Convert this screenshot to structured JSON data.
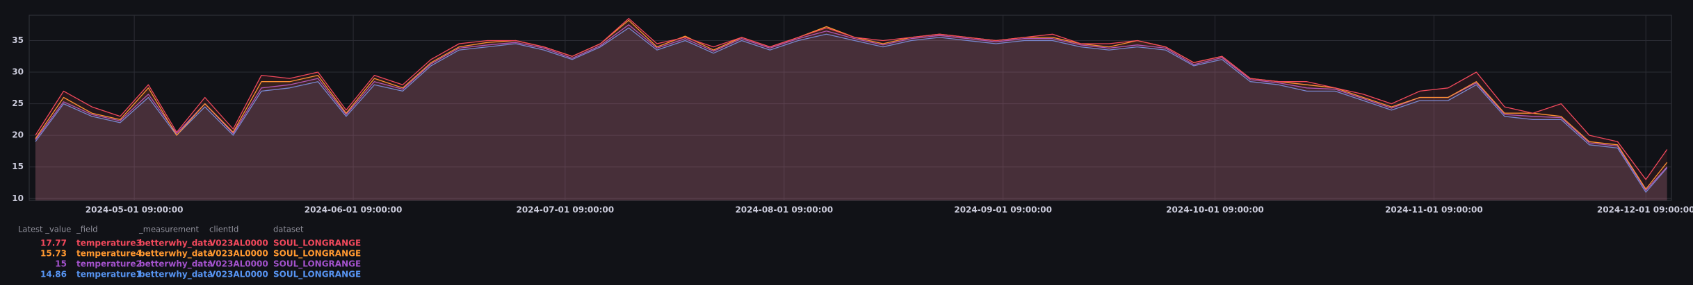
{
  "chart_data": {
    "type": "line",
    "x": [
      "2024-04-17 09:00:00",
      "2024-04-21 09:00:00",
      "2024-04-25 09:00:00",
      "2024-04-29 09:00:00",
      "2024-05-03 09:00:00",
      "2024-05-07 09:00:00",
      "2024-05-11 09:00:00",
      "2024-05-15 09:00:00",
      "2024-05-19 09:00:00",
      "2024-05-23 09:00:00",
      "2024-05-27 09:00:00",
      "2024-05-31 09:00:00",
      "2024-06-04 09:00:00",
      "2024-06-08 09:00:00",
      "2024-06-12 09:00:00",
      "2024-06-16 09:00:00",
      "2024-06-20 09:00:00",
      "2024-06-24 09:00:00",
      "2024-06-28 09:00:00",
      "2024-07-02 09:00:00",
      "2024-07-06 09:00:00",
      "2024-07-10 09:00:00",
      "2024-07-14 09:00:00",
      "2024-07-18 09:00:00",
      "2024-07-22 09:00:00",
      "2024-07-26 09:00:00",
      "2024-07-30 09:00:00",
      "2024-08-03 09:00:00",
      "2024-08-07 09:00:00",
      "2024-08-11 09:00:00",
      "2024-08-15 09:00:00",
      "2024-08-19 09:00:00",
      "2024-08-23 09:00:00",
      "2024-08-27 09:00:00",
      "2024-08-31 09:00:00",
      "2024-09-04 09:00:00",
      "2024-09-08 09:00:00",
      "2024-09-12 09:00:00",
      "2024-09-16 09:00:00",
      "2024-09-20 09:00:00",
      "2024-09-24 09:00:00",
      "2024-09-28 09:00:00",
      "2024-10-02 09:00:00",
      "2024-10-06 09:00:00",
      "2024-10-10 09:00:00",
      "2024-10-14 09:00:00",
      "2024-10-18 09:00:00",
      "2024-10-22 09:00:00",
      "2024-10-26 09:00:00",
      "2024-10-30 09:00:00",
      "2024-11-03 09:00:00",
      "2024-11-07 09:00:00",
      "2024-11-11 09:00:00",
      "2024-11-15 09:00:00",
      "2024-11-19 09:00:00",
      "2024-11-23 09:00:00",
      "2024-11-27 09:00:00",
      "2024-12-01 09:00:00",
      "2024-12-04 09:00:00"
    ],
    "xlim": [
      "2024-04-16 12:00:00",
      "2024-12-05 00:00:00"
    ],
    "xticks": [
      "2024-05-01 09:00:00",
      "2024-06-01 09:00:00",
      "2024-07-01 09:00:00",
      "2024-08-01 09:00:00",
      "2024-09-01 09:00:00",
      "2024-10-01 09:00:00",
      "2024-11-01 09:00:00",
      "2024-12-01 09:00:00"
    ],
    "ylim": [
      9.7,
      39
    ],
    "yticks": [
      10,
      15,
      20,
      25,
      30,
      35
    ],
    "grid": true,
    "legend": {
      "columns": [
        "Latest _value",
        "_field",
        "_measurement",
        "clientId",
        "dataset"
      ]
    },
    "series": [
      {
        "name": "temperature3",
        "color": "#f2495c",
        "measurement": "betterwhy_data",
        "clientId": "V023AL0000",
        "dataset": "SOUL_LONGRANGE",
        "values": [
          20,
          27,
          24.5,
          23,
          28,
          20.5,
          26,
          21,
          29.5,
          29,
          30,
          24,
          29.5,
          28,
          32,
          34.5,
          35,
          35,
          34,
          32.5,
          34.5,
          38.5,
          34.5,
          35.5,
          34,
          35.5,
          34,
          35.5,
          37,
          35.5,
          35,
          35.5,
          36,
          35.5,
          35,
          35.5,
          36,
          34.5,
          34.5,
          35,
          34,
          31.5,
          32.5,
          29,
          28.5,
          28.5,
          27.5,
          26.5,
          25,
          27,
          27.5,
          30,
          24.5,
          23.5,
          25,
          20,
          19,
          13,
          17.77
        ]
      },
      {
        "name": "temperature4",
        "color": "#ff9830",
        "measurement": "betterwhy_data",
        "clientId": "V023AL0000",
        "dataset": "SOUL_LONGRANGE",
        "values": [
          19.5,
          26,
          23.5,
          22.5,
          27.5,
          20,
          25,
          20.5,
          28.5,
          28.5,
          29.5,
          23.5,
          29,
          27.5,
          31.5,
          34,
          34.7,
          35,
          34,
          32.5,
          34.5,
          38.2,
          34,
          35.7,
          33.5,
          35.5,
          34,
          35.5,
          37.2,
          35.5,
          34.5,
          35.5,
          36,
          35.5,
          35,
          35.5,
          35.5,
          34.5,
          34,
          35,
          34,
          31.5,
          32.5,
          29,
          28.5,
          28,
          27.5,
          26,
          24.5,
          26,
          26,
          28.5,
          23.5,
          23.5,
          23,
          19,
          18.5,
          11.5,
          15.73
        ]
      },
      {
        "name": "temperature2",
        "color": "#a352cc",
        "measurement": "betterwhy_data",
        "clientId": "V023AL0000",
        "dataset": "SOUL_LONGRANGE",
        "values": [
          19.3,
          25.3,
          23.3,
          22.3,
          26.5,
          20.3,
          25,
          20.3,
          27.5,
          28,
          29,
          23.3,
          28.5,
          27.3,
          31.3,
          33.8,
          34.3,
          34.7,
          33.8,
          32.2,
          34.2,
          37.5,
          33.8,
          35.3,
          33.3,
          35.3,
          33.8,
          35.3,
          36.5,
          35.3,
          34.3,
          35.3,
          35.8,
          35.3,
          34.8,
          35.3,
          35.3,
          34.3,
          33.8,
          34.3,
          33.8,
          31.2,
          32.3,
          28.8,
          28.3,
          27.5,
          27.3,
          25.8,
          24.3,
          26,
          26,
          28.3,
          23.3,
          23,
          22.8,
          18.8,
          18.3,
          11.3,
          15
        ]
      },
      {
        "name": "temperature1",
        "color": "#5794f2",
        "measurement": "betterwhy_data",
        "clientId": "V023AL0000",
        "dataset": "SOUL_LONGRANGE",
        "values": [
          19,
          25,
          23,
          22,
          26,
          20,
          24.5,
          20,
          27,
          27.5,
          28.5,
          23,
          28,
          27,
          31,
          33.5,
          34,
          34.5,
          33.5,
          32,
          34,
          37,
          33.5,
          35,
          33,
          35,
          33.5,
          35,
          36,
          35,
          34,
          35,
          35.5,
          35,
          34.5,
          35,
          35,
          34,
          33.5,
          34,
          33.5,
          31,
          32,
          28.5,
          28,
          27,
          27,
          25.5,
          24,
          25.5,
          25.5,
          28,
          23,
          22.5,
          22.5,
          18.5,
          18,
          11,
          14.86
        ]
      }
    ]
  }
}
